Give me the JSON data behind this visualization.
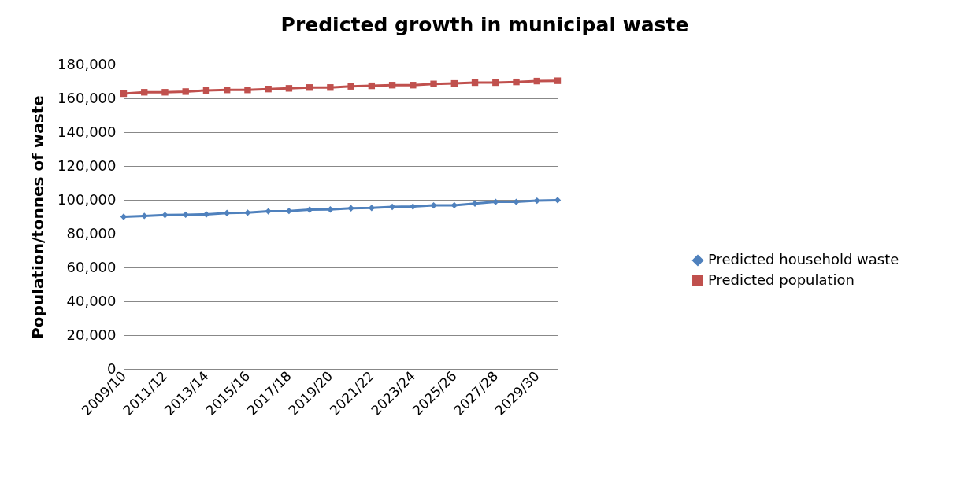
{
  "chart_data": {
    "type": "line",
    "title": "Predicted growth in municipal waste",
    "ylabel": "Population/tonnes of waste",
    "categories": [
      "2009/10",
      null,
      "2011/12",
      null,
      "2013/14",
      null,
      "2015/16",
      null,
      "2017/18",
      null,
      "2019/20",
      null,
      "2021/22",
      null,
      "2023/24",
      null,
      "2025/26",
      null,
      "2027/28",
      null,
      "2029/30",
      null
    ],
    "series": [
      {
        "name": "Predicted household waste",
        "color": "#4f81bd",
        "marker": "diamond",
        "values": [
          90000,
          90500,
          91000,
          91200,
          91400,
          92200,
          92400,
          93200,
          93400,
          94200,
          94300,
          95000,
          95200,
          95800,
          96000,
          96700,
          96800,
          97800,
          98800,
          98800,
          99500,
          99800
        ]
      },
      {
        "name": "Predicted population",
        "color": "#c0504d",
        "marker": "square",
        "values": [
          162800,
          163600,
          163600,
          164000,
          164700,
          165000,
          165000,
          165500,
          165900,
          166400,
          166400,
          167100,
          167400,
          167800,
          167800,
          168500,
          168800,
          169300,
          169300,
          169700,
          170200,
          170400
        ]
      }
    ],
    "ylim": [
      0,
      180000
    ],
    "yticks": [
      0,
      {
        "value": 20000,
        "label": "20,000"
      },
      {
        "value": 40000,
        "label": "40,000"
      },
      {
        "value": 60000,
        "label": "60,000"
      },
      {
        "value": 80000,
        "label": "80,000"
      },
      {
        "value": 100000,
        "label": "100,000"
      },
      {
        "value": 120000,
        "label": "120,000"
      },
      {
        "value": 140000,
        "label": "140,000"
      },
      {
        "value": 160000,
        "label": "160,000"
      },
      {
        "value": 180000,
        "label": "180,000"
      }
    ],
    "grid": "y",
    "legend": "right",
    "line_style": "solid"
  }
}
